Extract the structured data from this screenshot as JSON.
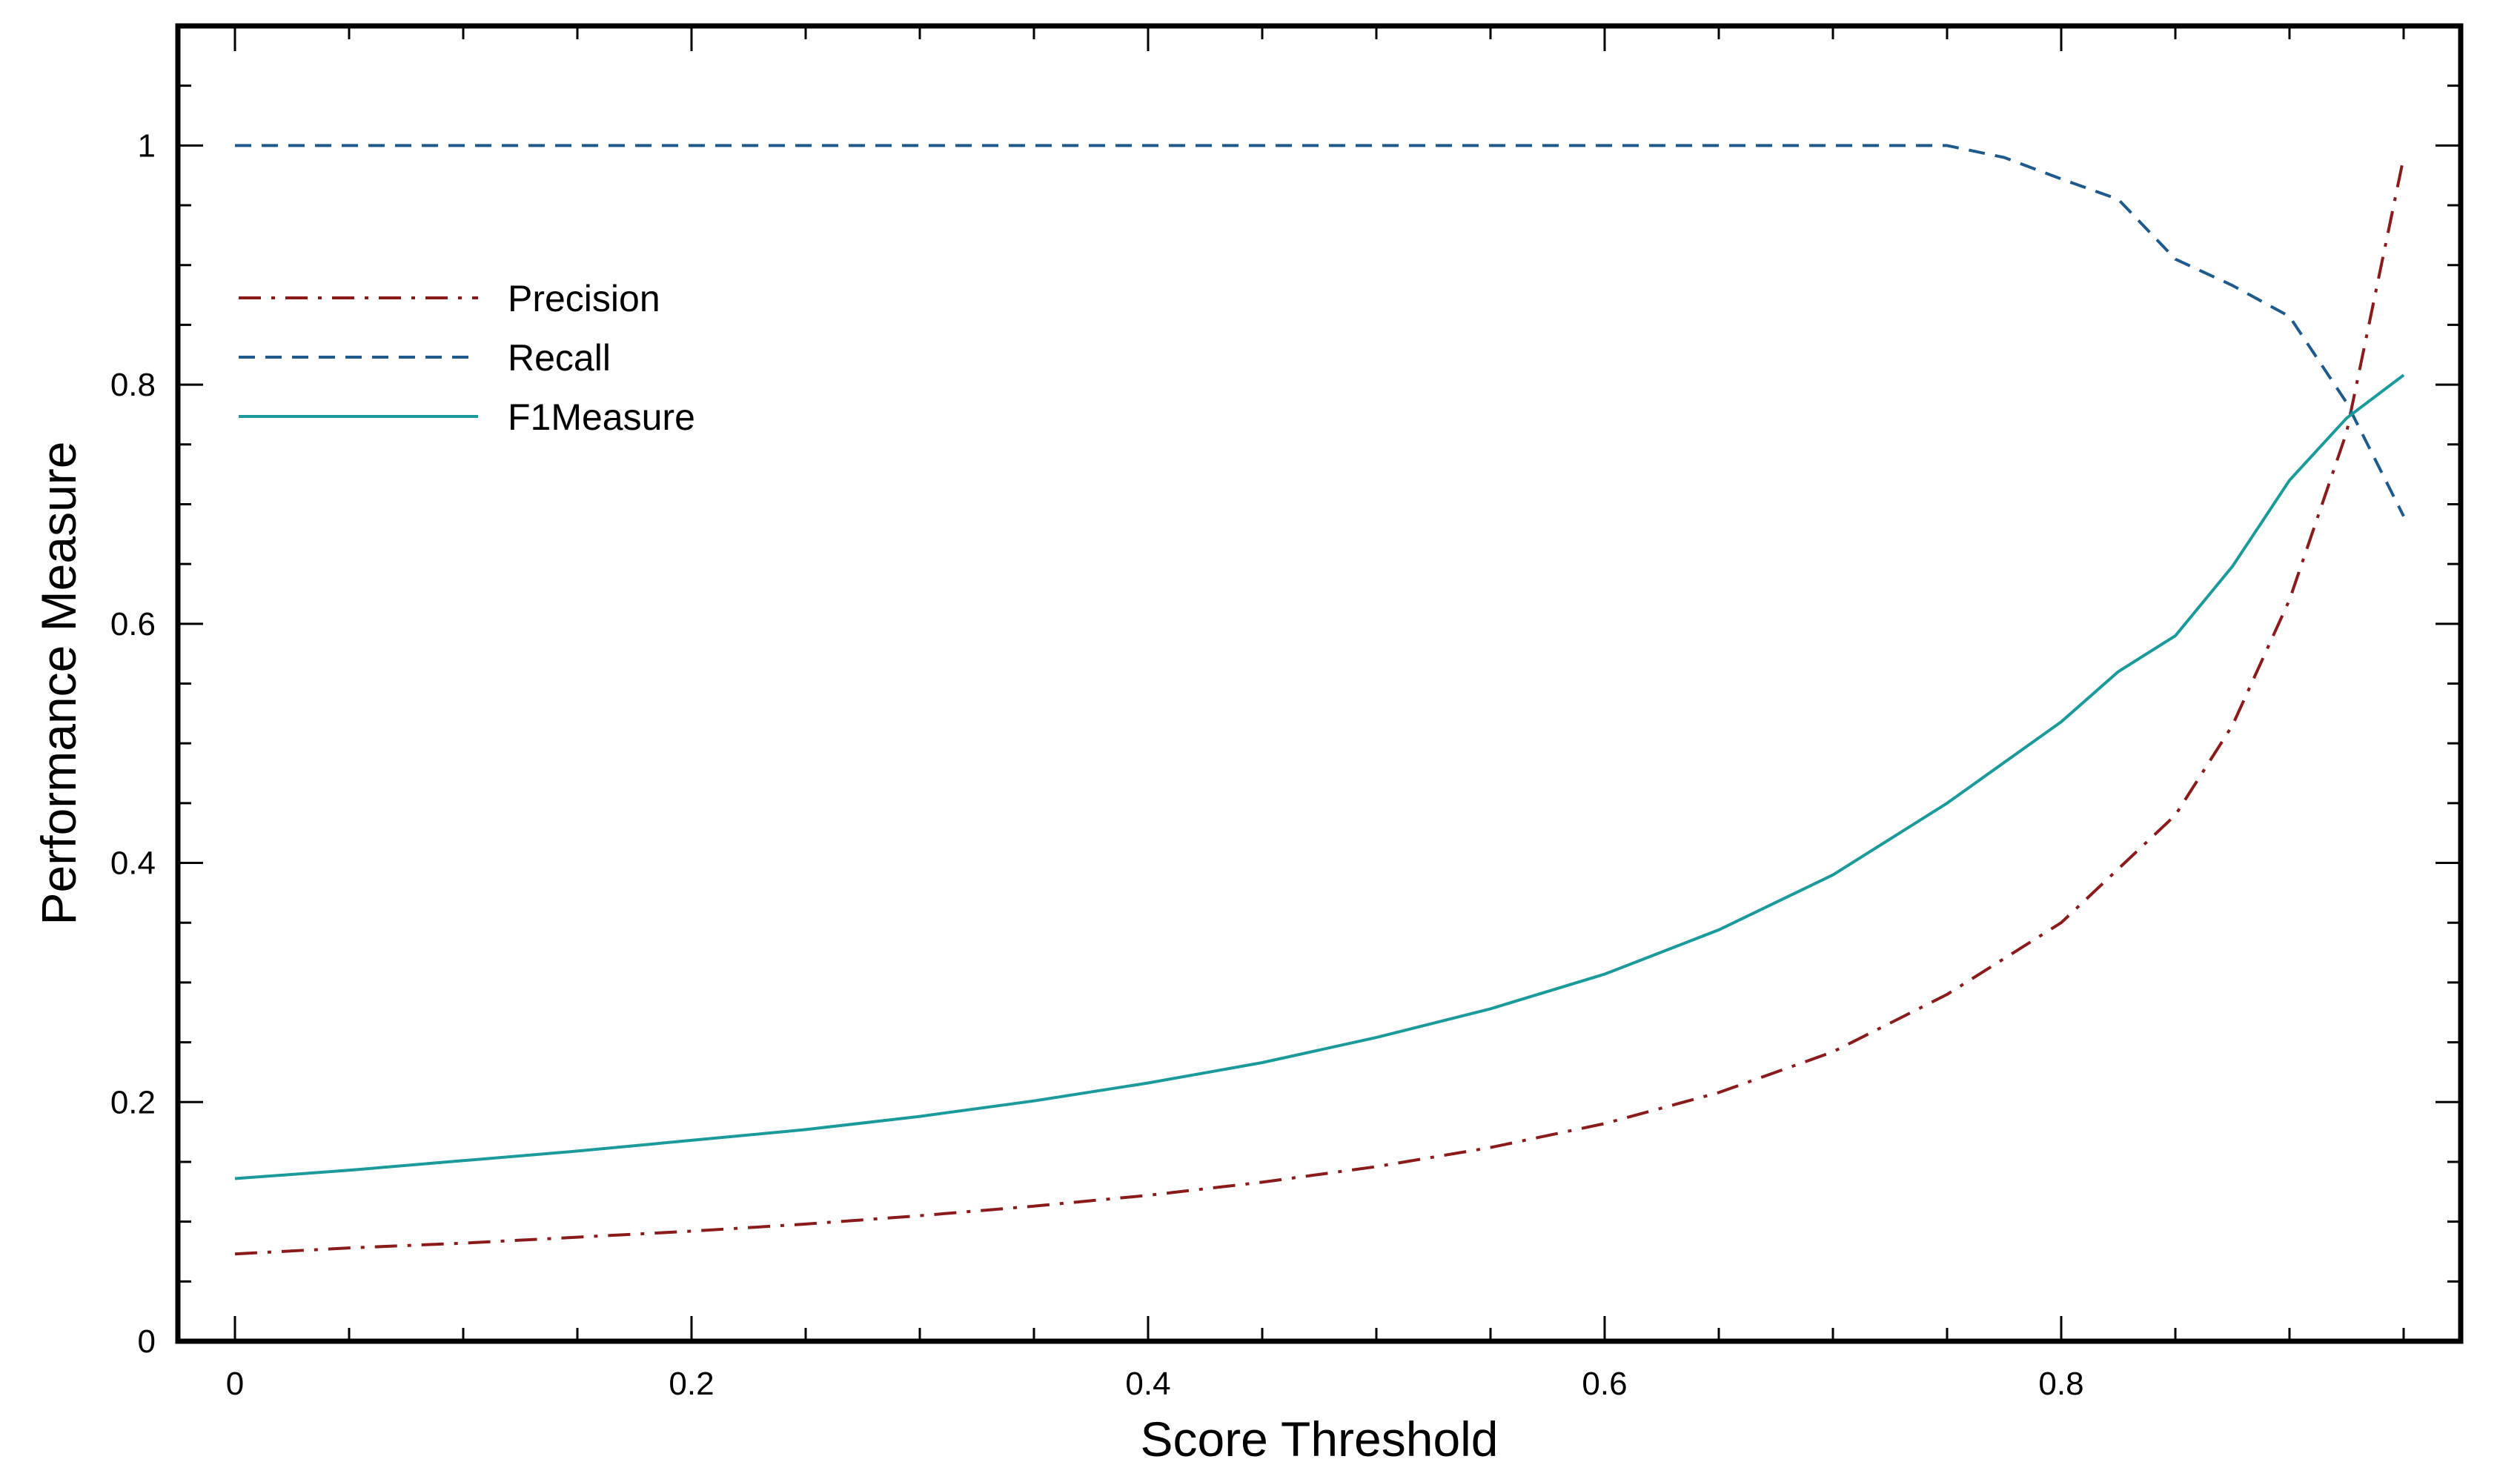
{
  "chart_data": {
    "type": "line",
    "title": "",
    "xlabel": "Score Threshold",
    "ylabel": "Performance Measure",
    "xlim": [
      -0.025,
      0.975
    ],
    "ylim": [
      0,
      1.1
    ],
    "x_ticks": [
      0,
      0.2,
      0.4,
      0.6,
      0.8
    ],
    "x_tick_labels": [
      "0",
      "0.2",
      "0.4",
      "0.6",
      "0.8"
    ],
    "y_ticks": [
      0,
      0.2,
      0.4,
      0.6,
      0.8,
      1
    ],
    "y_tick_labels": [
      "0",
      "0.2",
      "0.4",
      "0.6",
      "0.8",
      "1"
    ],
    "grid": false,
    "legend_position": "upper-left",
    "series": [
      {
        "name": "Precision",
        "color": "#8b1a1a",
        "style": "dashdot",
        "x": [
          0,
          0.05,
          0.1,
          0.15,
          0.2,
          0.25,
          0.3,
          0.35,
          0.4,
          0.45,
          0.5,
          0.55,
          0.6,
          0.65,
          0.7,
          0.75,
          0.8,
          0.825,
          0.85,
          0.875,
          0.9,
          0.925,
          0.95
        ],
        "y": [
          0.073,
          0.078,
          0.082,
          0.087,
          0.092,
          0.098,
          0.105,
          0.113,
          0.122,
          0.133,
          0.146,
          0.162,
          0.182,
          0.208,
          0.242,
          0.29,
          0.35,
          0.395,
          0.44,
          0.515,
          0.62,
          0.76,
          0.99
        ]
      },
      {
        "name": "Recall",
        "color": "#1f5a8c",
        "style": "dashed",
        "x": [
          0,
          0.05,
          0.1,
          0.15,
          0.2,
          0.25,
          0.3,
          0.35,
          0.4,
          0.45,
          0.5,
          0.55,
          0.6,
          0.65,
          0.7,
          0.75,
          0.775,
          0.8,
          0.825,
          0.85,
          0.875,
          0.9,
          0.925,
          0.95
        ],
        "y": [
          1,
          1,
          1,
          1,
          1,
          1,
          1,
          1,
          1,
          1,
          1,
          1,
          1,
          1,
          1,
          1,
          0.99,
          0.972,
          0.955,
          0.905,
          0.883,
          0.857,
          0.785,
          0.69
        ]
      },
      {
        "name": "F1Measure",
        "color": "#1a9a9a",
        "style": "solid",
        "x": [
          0,
          0.05,
          0.1,
          0.15,
          0.2,
          0.25,
          0.3,
          0.35,
          0.4,
          0.45,
          0.5,
          0.55,
          0.6,
          0.65,
          0.7,
          0.75,
          0.8,
          0.825,
          0.85,
          0.875,
          0.9,
          0.925,
          0.95
        ],
        "y": [
          0.136,
          0.143,
          0.151,
          0.159,
          0.168,
          0.177,
          0.188,
          0.201,
          0.216,
          0.233,
          0.254,
          0.278,
          0.307,
          0.344,
          0.39,
          0.45,
          0.518,
          0.56,
          0.59,
          0.648,
          0.72,
          0.772,
          0.808
        ]
      }
    ]
  }
}
